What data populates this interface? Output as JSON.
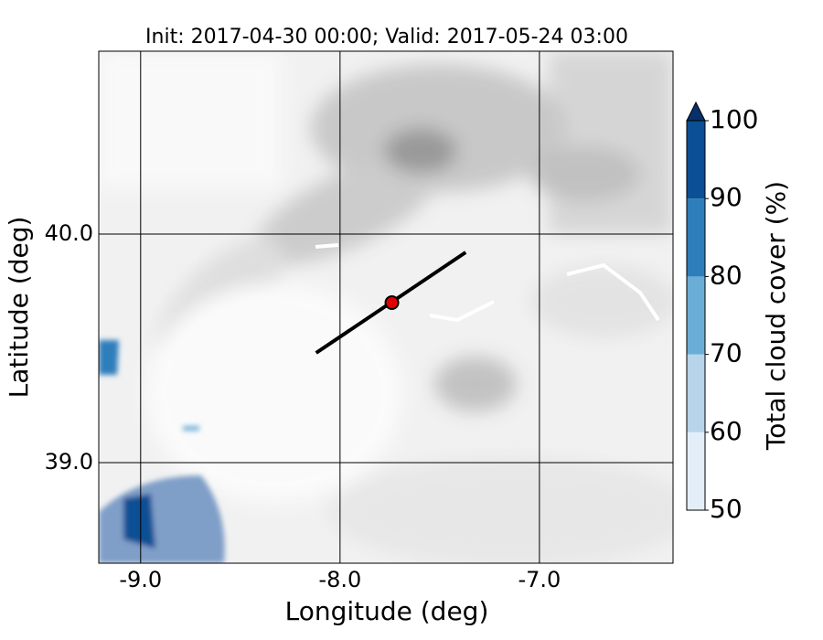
{
  "map": {
    "title": "Init: 2017-04-30 00:00; Valid: 2017-05-24 03:00",
    "xlabel": "Longitude (deg)",
    "ylabel": "Latitude (deg)",
    "xlim": [
      -9.21,
      -6.33
    ],
    "ylim": [
      38.56,
      40.8
    ],
    "xticks": [
      {
        "value": -9,
        "label": "-9.0"
      },
      {
        "value": -8,
        "label": "-8.0"
      },
      {
        "value": -7,
        "label": "-7.0"
      }
    ],
    "yticks": [
      {
        "value": 39,
        "label": "39.0"
      },
      {
        "value": 40,
        "label": "40.0"
      }
    ],
    "transect": {
      "lon": [
        -8.12,
        -7.37
      ],
      "lat": [
        39.48,
        39.92
      ],
      "color": "#000000"
    },
    "point": {
      "lon": -7.74,
      "lat": 39.7,
      "color": "#e00000"
    },
    "colorbar": {
      "label": "Total cloud cover (%)",
      "levels": [
        50,
        60,
        70,
        80,
        90,
        100
      ],
      "colors": [
        "#e3eef9",
        "#b7d4ea",
        "#6aaed6",
        "#2e7ebc",
        "#0b4f94"
      ],
      "extend_color": "#08306b"
    }
  }
}
